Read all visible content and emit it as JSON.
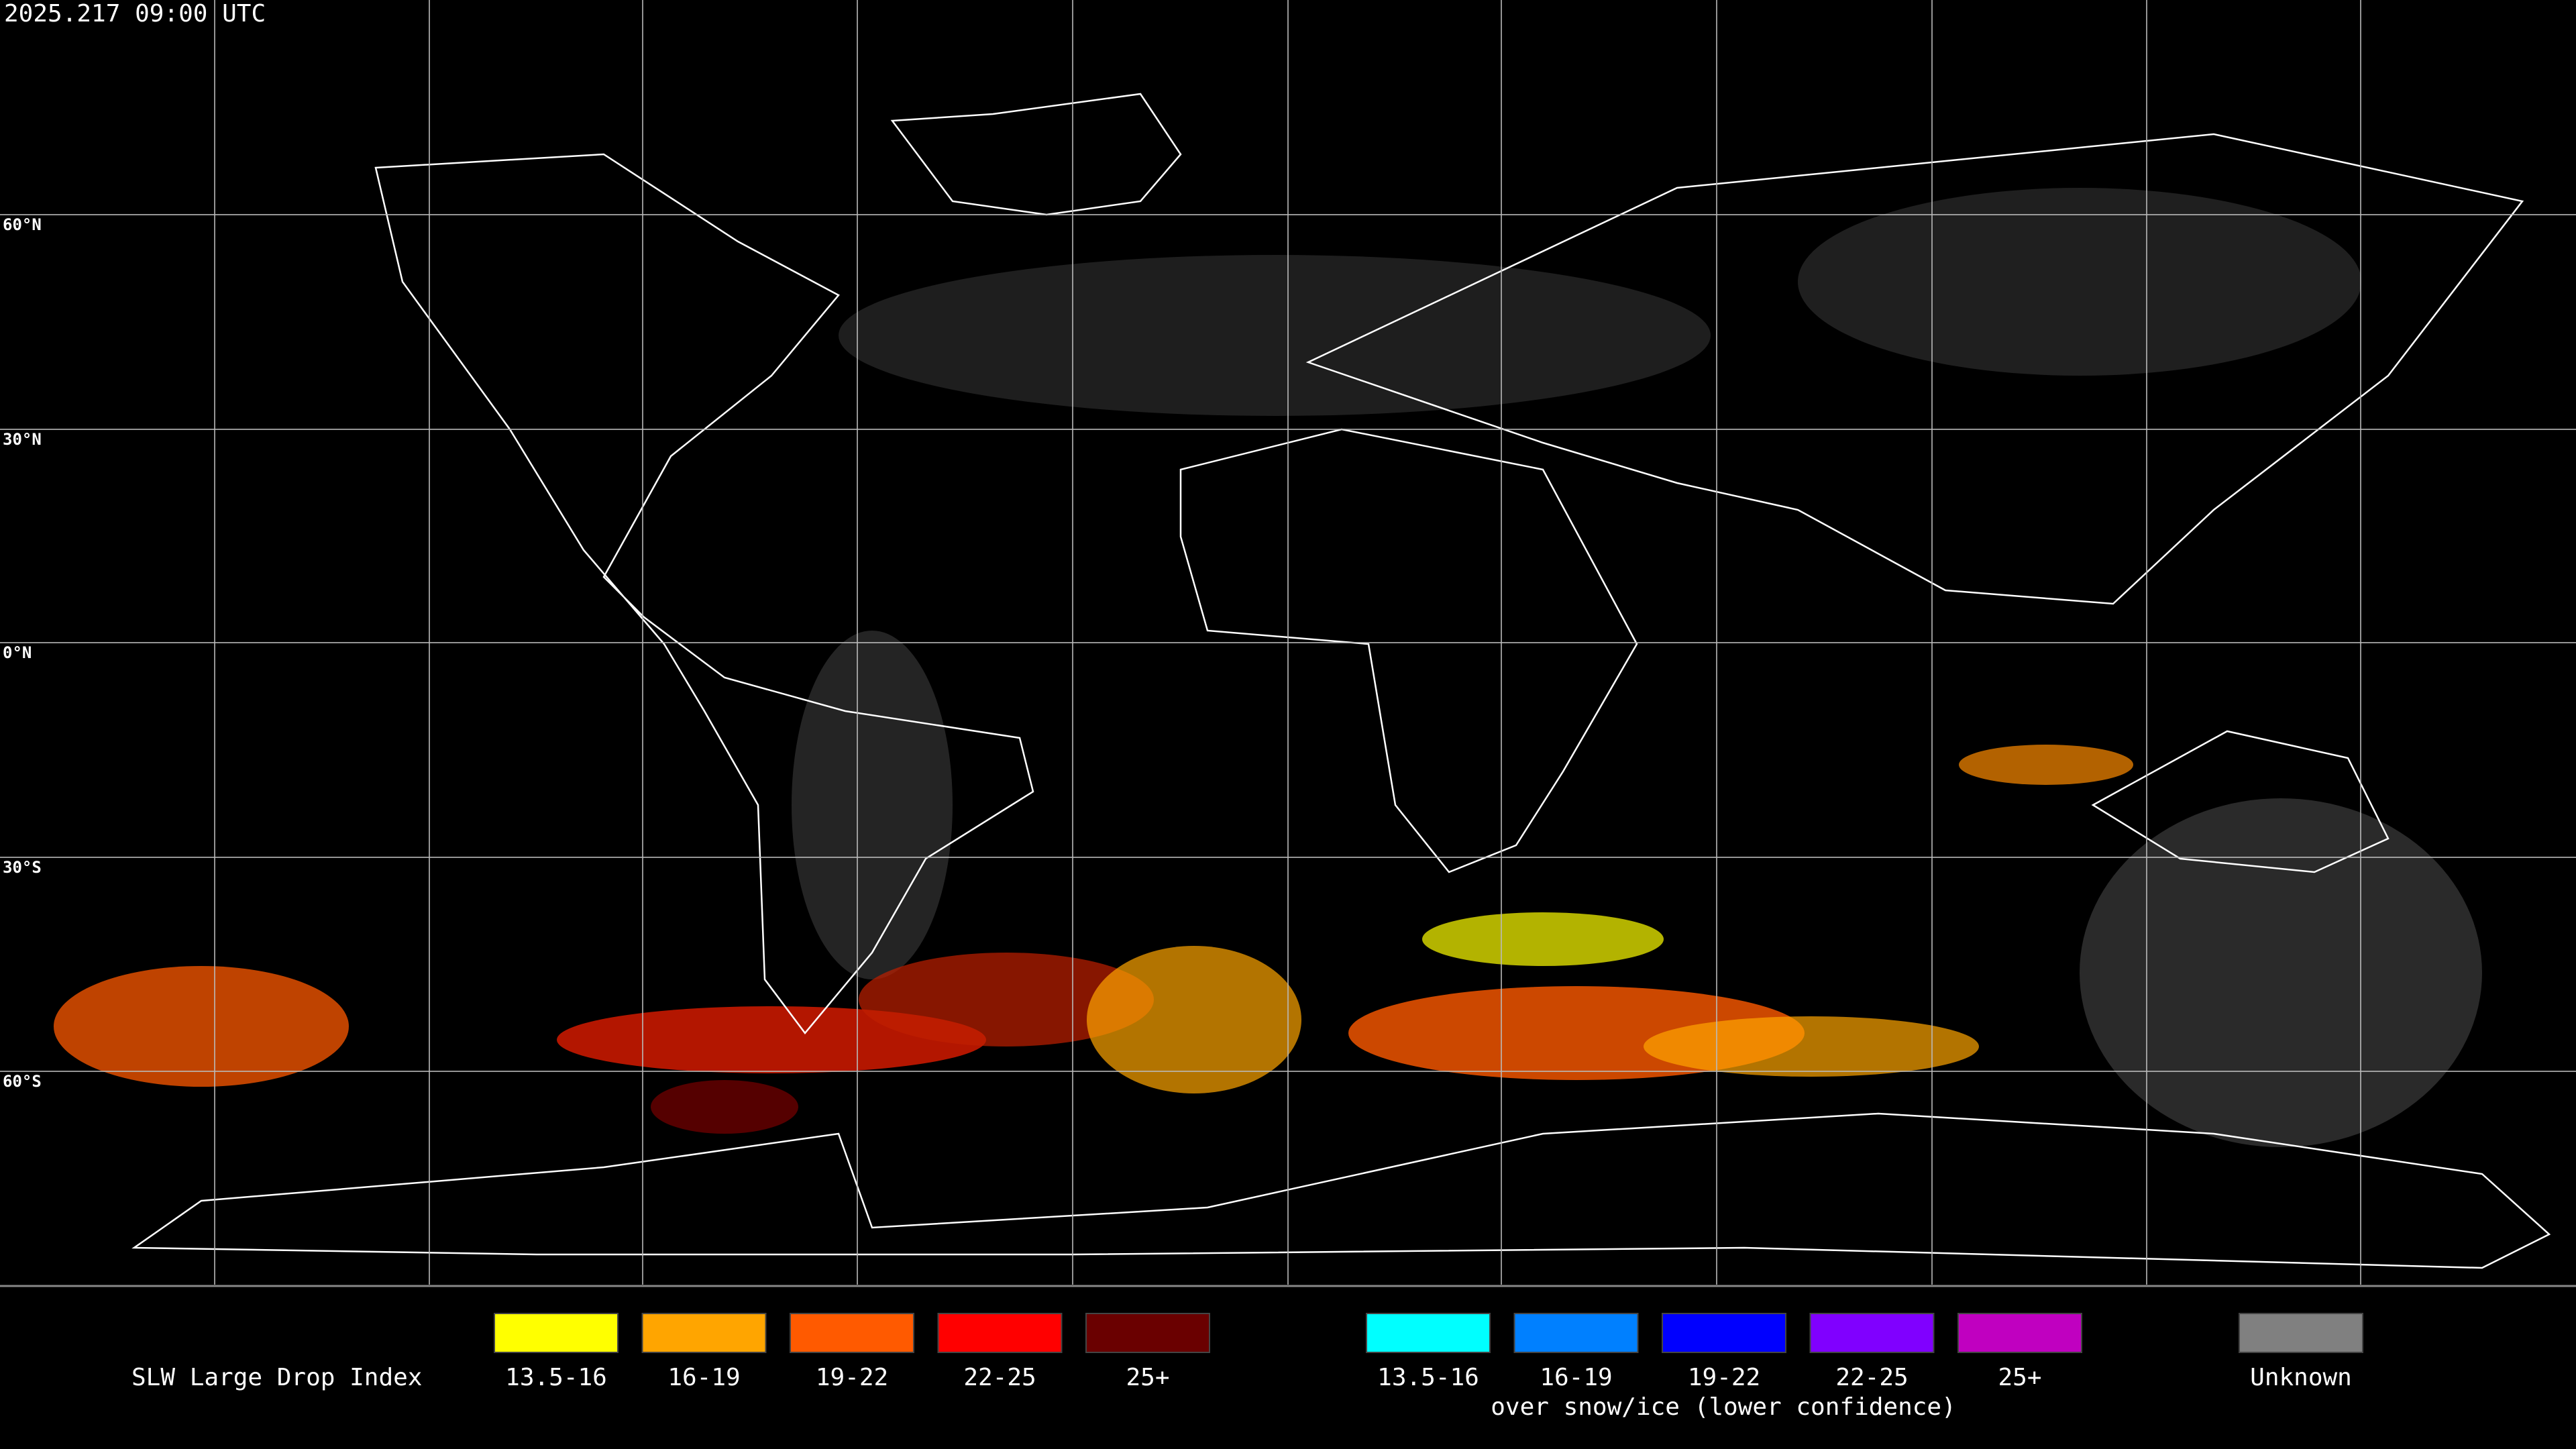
{
  "timestamp": "2025.217 09:00 UTC",
  "latitude_labels": [
    "60°N",
    "30°N",
    "0°N",
    "30°S",
    "60°S"
  ],
  "legend": {
    "title": "SLW Large Drop Index",
    "items": [
      {
        "label": "13.5-16",
        "color": "#ffff00"
      },
      {
        "label": "16-19",
        "color": "#ffa500"
      },
      {
        "label": "19-22",
        "color": "#ff5a00"
      },
      {
        "label": "22-25",
        "color": "#ff0000"
      },
      {
        "label": "25+",
        "color": "#6a0000"
      }
    ],
    "snow_items": [
      {
        "label": "13.5-16",
        "color": "#00ffff"
      },
      {
        "label": "16-19",
        "color": "#0080ff"
      },
      {
        "label": "19-22",
        "color": "#0000ff"
      },
      {
        "label": "22-25",
        "color": "#8000ff"
      },
      {
        "label": "25+",
        "color": "#c000c0"
      }
    ],
    "snow_note": "over snow/ice (lower confidence)",
    "unknown": {
      "label": "Unknown",
      "color": "#808080"
    }
  }
}
